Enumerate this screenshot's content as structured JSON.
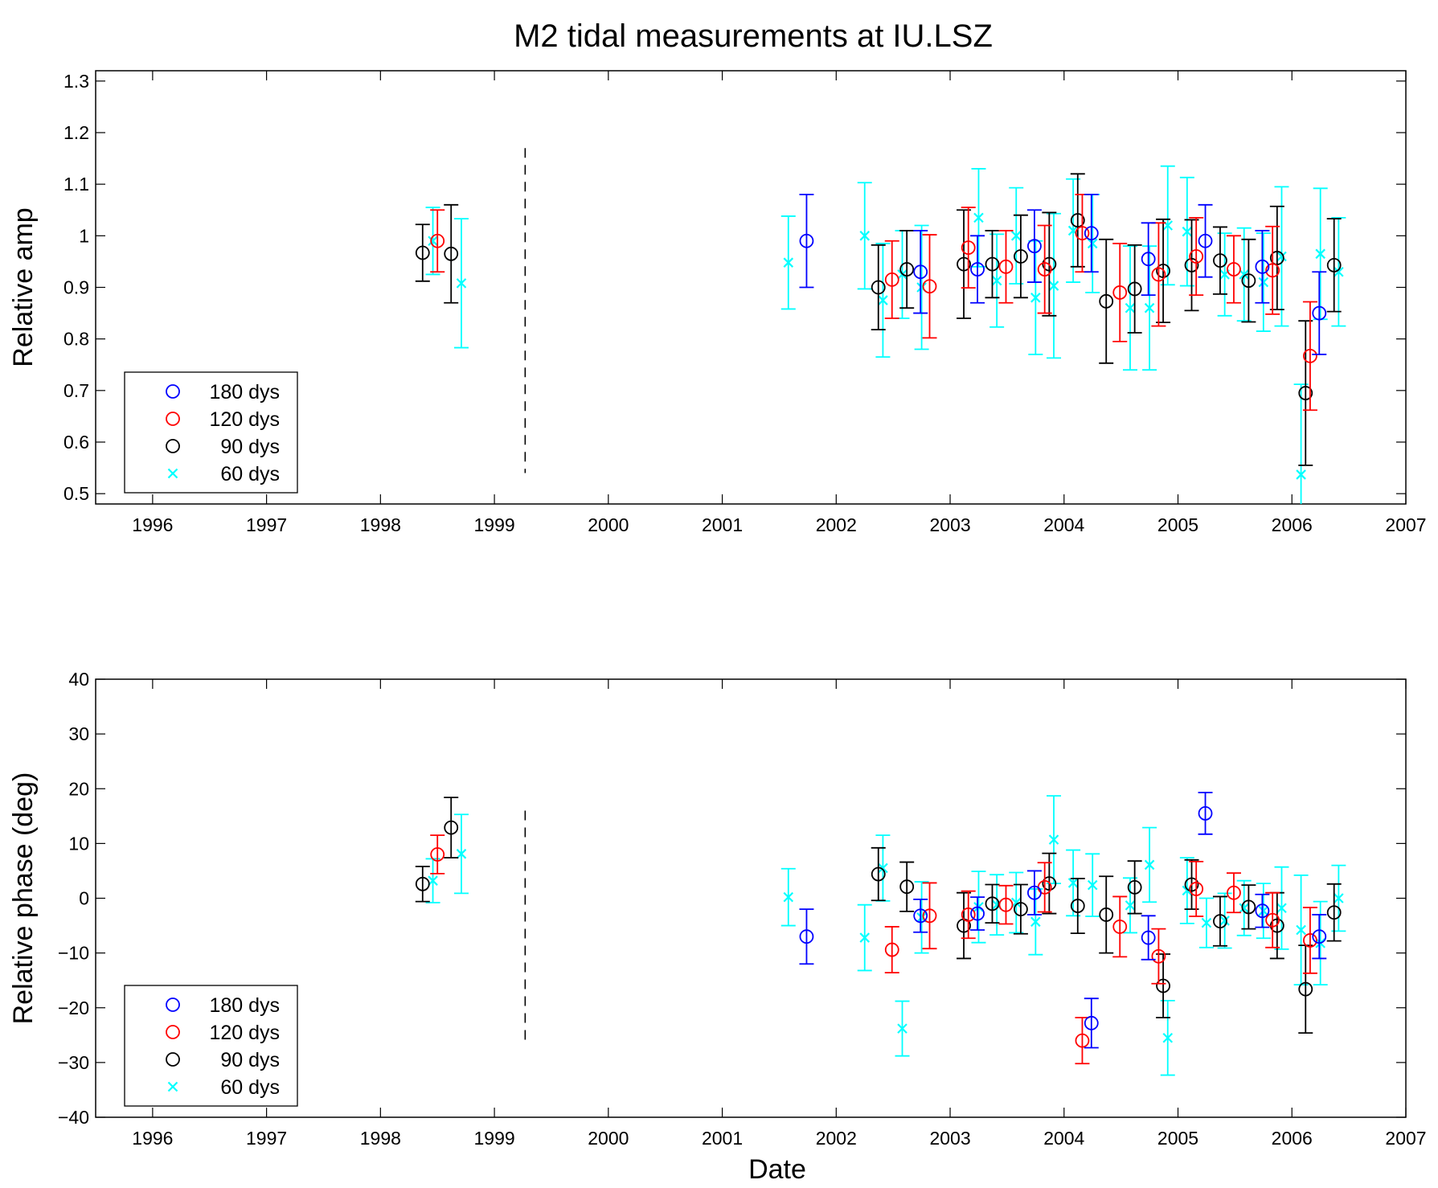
{
  "chart_data": {
    "type": "scatter",
    "title": "M2 tidal measurements at IU.LSZ",
    "xlabel": "Date",
    "x_unit": "year",
    "xlim": [
      1995.5,
      2007
    ],
    "xticks": [
      "1996",
      "1997",
      "1998",
      "1999",
      "2000",
      "2001",
      "2002",
      "2003",
      "2004",
      "2005",
      "2006",
      "2007"
    ],
    "dashed_marker_x": 1999.27,
    "series_legend": [
      {
        "name": "180 dys",
        "marker": "circle",
        "color": "#0000ff"
      },
      {
        "name": "120 dys",
        "marker": "circle",
        "color": "#ff0000"
      },
      {
        "name": "90 dys",
        "marker": "circle",
        "color": "#000000"
      },
      {
        "name": "60 dys",
        "marker": "x",
        "color": "#00ffff"
      }
    ],
    "panels": [
      {
        "id": "amp",
        "ylabel": "Relative amp",
        "ylim": [
          0.48,
          1.32
        ],
        "yticks": [
          "0.5",
          "0.6",
          "0.7",
          "0.8",
          "0.9",
          "1",
          "1.1",
          "1.2",
          "1.3"
        ],
        "legend_position": "bottom-left",
        "dashed_marker_range": [
          0.54,
          1.17
        ],
        "series": [
          {
            "name": "180 dys",
            "points": [
              [
                2001.74,
                0.99,
                0.09
              ],
              [
                2002.74,
                0.93,
                0.08
              ],
              [
                2003.24,
                0.935,
                0.065
              ],
              [
                2003.74,
                0.98,
                0.07
              ],
              [
                2004.24,
                1.005,
                0.075
              ],
              [
                2004.74,
                0.955,
                0.07
              ],
              [
                2005.24,
                0.99,
                0.07
              ],
              [
                2005.74,
                0.94,
                0.07
              ],
              [
                2006.24,
                0.85,
                0.08
              ]
            ]
          },
          {
            "name": "120 dys",
            "points": [
              [
                1998.5,
                0.99,
                0.06
              ],
              [
                2002.49,
                0.915,
                0.075
              ],
              [
                2002.82,
                0.902,
                0.1
              ],
              [
                2003.16,
                0.977,
                0.078
              ],
              [
                2003.49,
                0.94,
                0.07
              ],
              [
                2003.83,
                0.935,
                0.085
              ],
              [
                2004.16,
                1.005,
                0.075
              ],
              [
                2004.49,
                0.89,
                0.095
              ],
              [
                2004.83,
                0.925,
                0.1
              ],
              [
                2005.16,
                0.96,
                0.075
              ],
              [
                2005.49,
                0.935,
                0.065
              ],
              [
                2005.83,
                0.933,
                0.085
              ],
              [
                2006.16,
                0.767,
                0.105
              ]
            ]
          },
          {
            "name": "90 dys",
            "points": [
              [
                1998.37,
                0.967,
                0.055
              ],
              [
                1998.62,
                0.965,
                0.095
              ],
              [
                2002.37,
                0.9,
                0.082
              ],
              [
                2002.62,
                0.935,
                0.075
              ],
              [
                2003.12,
                0.945,
                0.105
              ],
              [
                2003.37,
                0.945,
                0.065
              ],
              [
                2003.62,
                0.96,
                0.08
              ],
              [
                2003.87,
                0.945,
                0.1
              ],
              [
                2004.12,
                1.03,
                0.09
              ],
              [
                2004.37,
                0.873,
                0.12
              ],
              [
                2004.62,
                0.897,
                0.085
              ],
              [
                2004.87,
                0.932,
                0.1
              ],
              [
                2005.12,
                0.943,
                0.088
              ],
              [
                2005.37,
                0.952,
                0.065
              ],
              [
                2005.62,
                0.913,
                0.08
              ],
              [
                2005.87,
                0.957,
                0.1
              ],
              [
                2006.12,
                0.695,
                0.14
              ],
              [
                2006.37,
                0.943,
                0.09
              ]
            ]
          },
          {
            "name": "60 dys",
            "points": [
              [
                1998.46,
                0.99,
                0.065
              ],
              [
                1998.71,
                0.908,
                0.125
              ],
              [
                2001.58,
                0.948,
                0.09
              ],
              [
                2002.25,
                1.0,
                0.103
              ],
              [
                2002.41,
                0.875,
                0.11
              ],
              [
                2002.58,
                0.925,
                0.085
              ],
              [
                2002.75,
                0.9,
                0.12
              ],
              [
                2003.25,
                1.035,
                0.095
              ],
              [
                2003.41,
                0.913,
                0.09
              ],
              [
                2003.58,
                1.0,
                0.093
              ],
              [
                2003.75,
                0.88,
                0.11
              ],
              [
                2003.91,
                0.903,
                0.14
              ],
              [
                2004.08,
                1.01,
                0.1
              ],
              [
                2004.25,
                0.985,
                0.095
              ],
              [
                2004.58,
                0.86,
                0.12
              ],
              [
                2004.75,
                0.86,
                0.12
              ],
              [
                2004.91,
                1.02,
                0.115
              ],
              [
                2005.08,
                1.008,
                0.105
              ],
              [
                2005.41,
                0.925,
                0.08
              ],
              [
                2005.58,
                0.925,
                0.09
              ],
              [
                2005.75,
                0.91,
                0.095
              ],
              [
                2005.91,
                0.96,
                0.135
              ],
              [
                2006.08,
                0.537,
                0.175
              ],
              [
                2006.25,
                0.965,
                0.127
              ],
              [
                2006.41,
                0.93,
                0.105
              ]
            ]
          }
        ]
      },
      {
        "id": "phase",
        "ylabel": "Relative phase (deg)",
        "ylim": [
          -40,
          40
        ],
        "yticks": [
          "40",
          "30",
          "20",
          "10",
          "0",
          "−10",
          "−20",
          "−30",
          "−40"
        ],
        "legend_position": "bottom-left",
        "dashed_marker_range": [
          -26,
          16
        ],
        "series": [
          {
            "name": "180 dys",
            "points": [
              [
                2001.74,
                -7,
                5
              ],
              [
                2002.74,
                -3.2,
                3
              ],
              [
                2003.24,
                -2.8,
                3
              ],
              [
                2003.74,
                1,
                4
              ],
              [
                2004.24,
                -22.8,
                4.5
              ],
              [
                2004.74,
                -7.2,
                4
              ],
              [
                2005.24,
                15.5,
                3.8
              ],
              [
                2005.74,
                -2.3,
                3
              ],
              [
                2006.24,
                -7,
                4
              ]
            ]
          },
          {
            "name": "120 dys",
            "points": [
              [
                1998.5,
                8,
                3.5
              ],
              [
                2002.49,
                -9.4,
                4.2
              ],
              [
                2002.82,
                -3.2,
                6
              ],
              [
                2003.16,
                -3,
                4.3
              ],
              [
                2003.49,
                -1.2,
                3.5
              ],
              [
                2003.83,
                2,
                4.5
              ],
              [
                2004.16,
                -26,
                4.2
              ],
              [
                2004.49,
                -5.2,
                5.5
              ],
              [
                2004.83,
                -10.6,
                5
              ],
              [
                2005.16,
                1.7,
                5
              ],
              [
                2005.49,
                1,
                3.6
              ],
              [
                2005.83,
                -4,
                5
              ],
              [
                2006.16,
                -7.7,
                6
              ]
            ]
          },
          {
            "name": "90 dys",
            "points": [
              [
                1998.37,
                2.6,
                3.2
              ],
              [
                1998.62,
                12.9,
                5.5
              ],
              [
                2002.37,
                4.4,
                4.8
              ],
              [
                2002.62,
                2.1,
                4.5
              ],
              [
                2003.12,
                -5,
                6
              ],
              [
                2003.37,
                -1,
                3.5
              ],
              [
                2003.62,
                -2,
                4.5
              ],
              [
                2003.87,
                2.7,
                5.5
              ],
              [
                2004.12,
                -1.4,
                5
              ],
              [
                2004.37,
                -3,
                7
              ],
              [
                2004.62,
                2,
                4.8
              ],
              [
                2004.87,
                -16,
                5.8
              ],
              [
                2005.12,
                2.5,
                4.5
              ],
              [
                2005.37,
                -4.2,
                4.5
              ],
              [
                2005.62,
                -1.6,
                4
              ],
              [
                2005.87,
                -5,
                6
              ],
              [
                2006.12,
                -16.6,
                8
              ],
              [
                2006.37,
                -2.6,
                5.2
              ]
            ]
          },
          {
            "name": "60 dys",
            "points": [
              [
                1998.46,
                3.2,
                4
              ],
              [
                1998.71,
                8.1,
                7.2
              ],
              [
                2001.58,
                0.2,
                5.2
              ],
              [
                2002.25,
                -7.2,
                6
              ],
              [
                2002.41,
                5.5,
                6
              ],
              [
                2002.58,
                -23.8,
                5
              ],
              [
                2002.75,
                -3.5,
                6.5
              ],
              [
                2003.25,
                -1.6,
                6.5
              ],
              [
                2003.41,
                -1.2,
                5.5
              ],
              [
                2003.58,
                -0.8,
                5.5
              ],
              [
                2003.75,
                -4.3,
                6
              ],
              [
                2003.91,
                10.7,
                8
              ],
              [
                2004.08,
                2.8,
                6
              ],
              [
                2004.25,
                2.4,
                5.7
              ],
              [
                2004.58,
                -1.3,
                5
              ],
              [
                2004.75,
                6.1,
                6.8
              ],
              [
                2004.91,
                -25.5,
                6.8
              ],
              [
                2005.08,
                1.4,
                6
              ],
              [
                2005.25,
                -4.5,
                4.5
              ],
              [
                2005.41,
                -4.1,
                5
              ],
              [
                2005.58,
                -1.8,
                5
              ],
              [
                2005.75,
                -2.3,
                5
              ],
              [
                2005.91,
                -1.8,
                7.5
              ],
              [
                2006.08,
                -5.8,
                10
              ],
              [
                2006.25,
                -8.2,
                7.6
              ],
              [
                2006.41,
                0,
                6
              ]
            ]
          }
        ]
      }
    ]
  }
}
